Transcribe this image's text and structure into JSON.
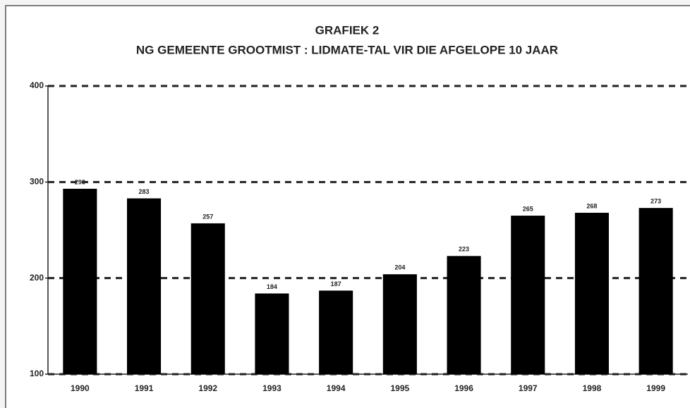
{
  "chart_data": {
    "type": "bar",
    "title": "GRAFIEK 2",
    "subtitle": "NG GEMEENTE GROOTMIST :  LIDMATE-TAL VIR DIE AFGELOPE 10 JAAR",
    "categories": [
      "1990",
      "1991",
      "1992",
      "1993",
      "1994",
      "1995",
      "1996",
      "1997",
      "1998",
      "1999"
    ],
    "values": [
      293,
      283,
      257,
      184,
      187,
      204,
      223,
      265,
      268,
      273
    ],
    "color": "#000000",
    "ylim": [
      100,
      400
    ],
    "yticks": [
      100,
      200,
      300,
      400
    ],
    "grid": true
  }
}
